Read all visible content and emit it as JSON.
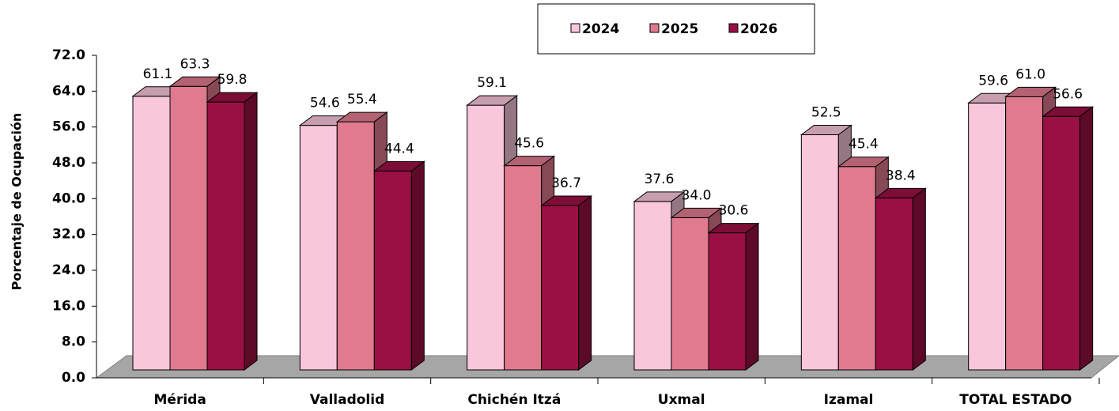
{
  "chart_data": {
    "type": "bar3d",
    "y_label": "Porcentaje de Ocupación",
    "categories": [
      "Mérida",
      "Valladolid",
      "Chichén Itzá",
      "Uxmal",
      "Izamal",
      "TOTAL ESTADO"
    ],
    "series": [
      {
        "name": "2024",
        "color": "#f9c6dc",
        "values": [
          61.1,
          54.6,
          59.1,
          37.6,
          52.5,
          59.6
        ],
        "value_labels": [
          "61.1",
          "54.6",
          "59.1",
          "37.6",
          "52.5",
          "59.6"
        ]
      },
      {
        "name": "2025",
        "color": "#e07a8e",
        "values": [
          63.3,
          55.4,
          45.6,
          34.0,
          45.4,
          61.0
        ],
        "value_labels": [
          "63.3",
          "55.4",
          "45.6",
          "34.0",
          "45.4",
          "61.0"
        ]
      },
      {
        "name": "2026",
        "color": "#9b1044",
        "values": [
          59.8,
          44.4,
          36.7,
          30.6,
          38.4,
          56.6
        ],
        "value_labels": [
          "59.8",
          "44.4",
          "36.7",
          "30.6",
          "38.4",
          "56.6"
        ]
      }
    ],
    "ylim": [
      0,
      72
    ],
    "yticks": [
      {
        "value": 0,
        "label": "0.0"
      },
      {
        "value": 8,
        "label": "8.0"
      },
      {
        "value": 16,
        "label": "16.0"
      },
      {
        "value": 24,
        "label": "24.0"
      },
      {
        "value": 32,
        "label": "32.0"
      },
      {
        "value": 40,
        "label": "40.0"
      },
      {
        "value": 48,
        "label": "48.0"
      },
      {
        "value": 56,
        "label": "56.0"
      },
      {
        "value": 64,
        "label": "64.0"
      },
      {
        "value": 72,
        "label": "72.0"
      }
    ],
    "legend": "top"
  }
}
